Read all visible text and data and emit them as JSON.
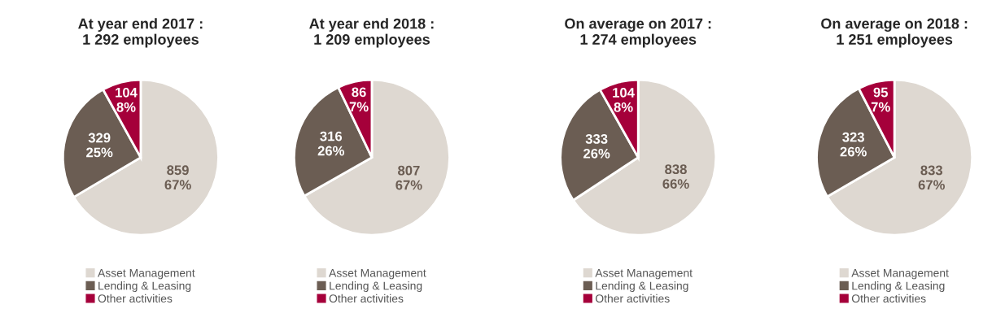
{
  "chart_data": [
    {
      "type": "pie",
      "title": "At year end 2017 :\n1 292 employees",
      "categories": [
        "Asset Management",
        "Lending & Leasing",
        "Other activities"
      ],
      "values": [
        859,
        329,
        104
      ],
      "value_labels": [
        "859\n67%",
        "329\n25%",
        "104\n8%"
      ],
      "colors": [
        "#ded8d1",
        "#6b5d53",
        "#a5003a"
      ],
      "legend": "bottom"
    },
    {
      "type": "pie",
      "title": "At year end 2018 :\n1 209 employees",
      "categories": [
        "Asset Management",
        "Lending & Leasing",
        "Other activities"
      ],
      "values": [
        807,
        316,
        86
      ],
      "value_labels": [
        "807\n67%",
        "316\n26%",
        "86\n7%"
      ],
      "colors": [
        "#ded8d1",
        "#6b5d53",
        "#a5003a"
      ],
      "legend": "bottom"
    },
    {
      "type": "pie",
      "title": "On average on 2017 :\n1 274 employees",
      "categories": [
        "Asset Management",
        "Lending & Leasing",
        "Other activities"
      ],
      "values": [
        838,
        333,
        104
      ],
      "value_labels": [
        "838\n66%",
        "333\n26%",
        "104\n8%"
      ],
      "colors": [
        "#ded8d1",
        "#6b5d53",
        "#a5003a"
      ],
      "legend": "bottom"
    },
    {
      "type": "pie",
      "title": "On average on 2018 :\n1 251 employees",
      "categories": [
        "Asset Management",
        "Lending & Leasing",
        "Other activities"
      ],
      "values": [
        833,
        323,
        95
      ],
      "value_labels": [
        "833\n67%",
        "323\n26%",
        "95\n7%"
      ],
      "colors": [
        "#ded8d1",
        "#6b5d53",
        "#a5003a"
      ],
      "legend": "bottom"
    }
  ]
}
